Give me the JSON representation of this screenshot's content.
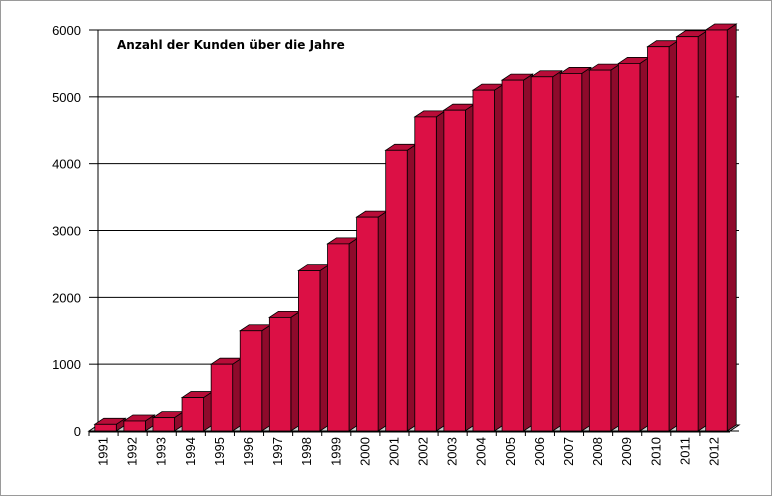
{
  "chart_data": {
    "type": "bar",
    "title": "Anzahl der Kunden über die Jahre",
    "xlabel": "",
    "ylabel": "",
    "categories": [
      "1991",
      "1992",
      "1993",
      "1994",
      "1995",
      "1996",
      "1997",
      "1998",
      "1999",
      "2000",
      "2001",
      "2002",
      "2003",
      "2004",
      "2005",
      "2006",
      "2007",
      "2008",
      "2009",
      "2010",
      "2011",
      "2012"
    ],
    "values": [
      100,
      150,
      200,
      500,
      1000,
      1500,
      1700,
      2400,
      2800,
      3200,
      4200,
      4700,
      4800,
      5100,
      5250,
      5300,
      5350,
      5400,
      5500,
      5750,
      5900,
      6000
    ],
    "ylim": [
      0,
      6000
    ],
    "yticks": [
      "0",
      "1000",
      "2000",
      "3000",
      "4000",
      "5000",
      "6000"
    ],
    "grid": true,
    "legend": "none",
    "colors": {
      "bar_front": "#dc1045",
      "bar_top": "#b80c38",
      "bar_side": "#8e0a2b",
      "grid": "#000000"
    }
  }
}
